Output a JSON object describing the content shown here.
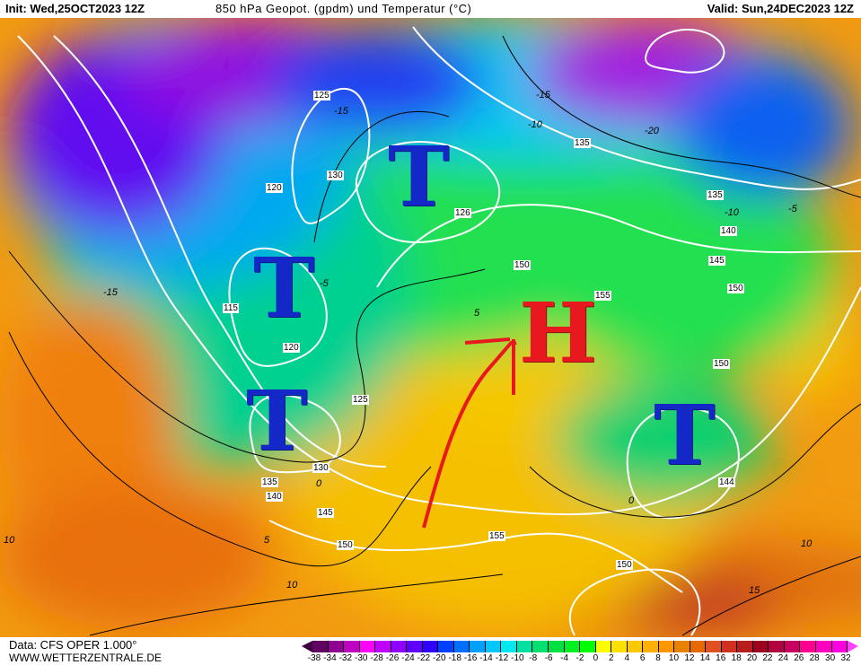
{
  "header": {
    "init": "Init: Wed,25OCT2023 12Z",
    "title": "850 hPa Geopot. (gpdm) und Temperatur (°C)",
    "valid": "Valid: Sun,24DEC2023 12Z"
  },
  "footer": {
    "data_source": "Data: CFS OPER 1.000°",
    "website": "WWW.WETTERZENTRALE.DE"
  },
  "colorbar": {
    "ticks": [
      "-38",
      "-34",
      "-32",
      "-30",
      "-28",
      "-26",
      "-24",
      "-22",
      "-20",
      "-18",
      "-16",
      "-14",
      "-12",
      "-10",
      "-8",
      "-6",
      "-4",
      "-2",
      "0",
      "2",
      "4",
      "6",
      "8",
      "10",
      "12",
      "14",
      "16",
      "18",
      "20",
      "22",
      "24",
      "26",
      "28",
      "30",
      "32"
    ],
    "colors": [
      "#600060",
      "#900090",
      "#c000c0",
      "#ff00ff",
      "#c000ff",
      "#9000ff",
      "#6000ff",
      "#3000ff",
      "#0040ff",
      "#0070ff",
      "#00a0ff",
      "#00c8ff",
      "#00e8f0",
      "#00e0a0",
      "#00e070",
      "#00e040",
      "#00f020",
      "#00ff00",
      "#ffff00",
      "#ffe000",
      "#ffc800",
      "#ffb000",
      "#ff9800",
      "#e88000",
      "#e86800",
      "#e05020",
      "#d03020",
      "#b81e1e",
      "#a00020",
      "#b00040",
      "#c80060",
      "#ff0090",
      "#ff00c0",
      "#ff00e0"
    ],
    "arrow_left": "#400040",
    "arrow_right": "#ff40ff"
  },
  "systems": [
    {
      "letter": "T",
      "kind": "low"
    },
    {
      "letter": "T",
      "kind": "low"
    },
    {
      "letter": "T",
      "kind": "low"
    },
    {
      "letter": "T",
      "kind": "low"
    },
    {
      "letter": "H",
      "kind": "high"
    }
  ],
  "geopotential_labels": [
    "125",
    "130",
    "120",
    "126",
    "135",
    "135",
    "140",
    "145",
    "150",
    "115",
    "120",
    "150",
    "155",
    "125",
    "150",
    "130",
    "135",
    "140",
    "145",
    "150",
    "155",
    "150",
    "144"
  ],
  "temperature_labels": [
    "-15",
    "-15",
    "-15",
    "-20",
    "-10",
    "-10",
    "-5",
    "-5",
    "5",
    "0",
    "0",
    "5",
    "10",
    "10",
    "15",
    "10"
  ],
  "colors": {
    "low": "#1428c8",
    "high": "#e8191e",
    "arrow": "#e8191e",
    "contour": "#ffffff"
  }
}
